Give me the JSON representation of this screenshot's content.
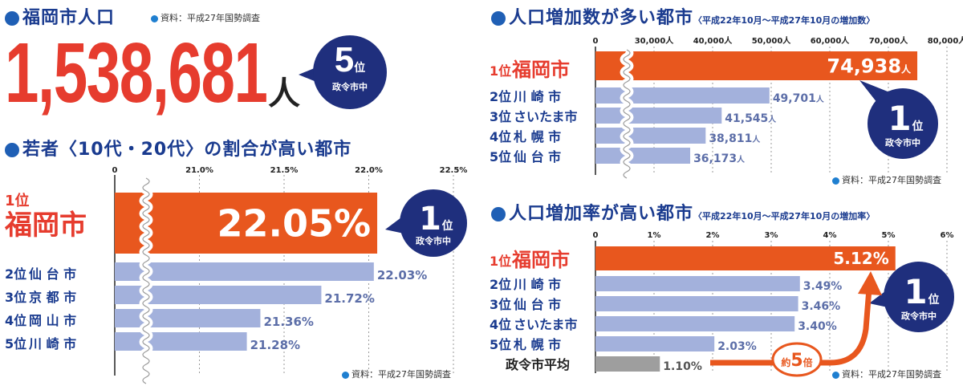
{
  "population": {
    "title": "福岡市人口",
    "source": "資料：平成27年国勢調査",
    "value": "1,538,681",
    "unit": "人",
    "badge": {
      "number": "5",
      "rank_suffix": "位",
      "label": "政令市中"
    }
  },
  "chart_data": [
    {
      "type": "bar",
      "title": "若者〈10代・20代〉の割合が高い都市",
      "categories": [
        "1位 福岡市",
        "2位 仙 台 市",
        "3位 京 都 市",
        "4位 岡 山 市",
        "5位 川 崎 市"
      ],
      "values": [
        22.05,
        22.03,
        21.72,
        21.36,
        21.28
      ],
      "value_labels": [
        "22.05%",
        "22.03%",
        "21.72%",
        "21.36%",
        "21.28%"
      ],
      "tick_labels": [
        "0",
        "21.0%",
        "21.5%",
        "22.0%",
        "22.5%"
      ],
      "axis_break": true,
      "xlim": [
        20.5,
        22.5
      ],
      "highlight_color": "#e8571e",
      "bar_color": "#a3b1dc",
      "badge": {
        "number": "1",
        "rank_suffix": "位",
        "label": "政令市中"
      },
      "source": "資料：平成27年国勢調査"
    },
    {
      "type": "bar",
      "title": "人口増加数が多い都市",
      "subtitle": "〈平成22年10月～平成27年10月の増加数〉",
      "categories": [
        "1位 福岡市",
        "2位 川 崎 市",
        "3位 さいたま市",
        "4位 札 幌 市",
        "5位 仙 台 市"
      ],
      "values": [
        74938,
        49701,
        41545,
        38811,
        36173
      ],
      "value_labels": [
        "74,938",
        "49,701",
        "41,545",
        "38,811",
        "36,173"
      ],
      "value_unit": "人",
      "tick_labels": [
        "0",
        "30,000人",
        "40,000人",
        "50,000人",
        "60,000人",
        "70,000人",
        "80,000人"
      ],
      "axis_break": true,
      "xlim": [
        20000,
        80000
      ],
      "highlight_color": "#e8571e",
      "bar_color": "#a3b1dc",
      "badge": {
        "number": "1",
        "rank_suffix": "位",
        "label": "政令市中"
      },
      "source": "資料：平成27年国勢調査"
    },
    {
      "type": "bar",
      "title": "人口増加率が高い都市",
      "subtitle": "〈平成22年10月～平成27年10月の増加率〉",
      "categories": [
        "1位 福岡市",
        "2位 川 崎 市",
        "3位 仙 台 市",
        "4位 さいたま市",
        "5位 札 幌 市",
        "政令市平均"
      ],
      "values": [
        5.12,
        3.49,
        3.46,
        3.4,
        2.03,
        1.1
      ],
      "value_labels": [
        "5.12%",
        "3.49%",
        "3.46%",
        "3.40%",
        "2.03%",
        "1.10%"
      ],
      "tick_labels": [
        "0",
        "1%",
        "2%",
        "3%",
        "4%",
        "5%",
        "6%"
      ],
      "xlim": [
        0,
        6
      ],
      "highlight_color": "#e8571e",
      "bar_color": "#a3b1dc",
      "average_color": "#9e9e9e",
      "annotation": {
        "prefix": "約",
        "number": "5",
        "suffix": "倍"
      },
      "badge": {
        "number": "1",
        "rank_suffix": "位",
        "label": "政令市中"
      },
      "source": "資料：平成27年国勢調査"
    }
  ]
}
